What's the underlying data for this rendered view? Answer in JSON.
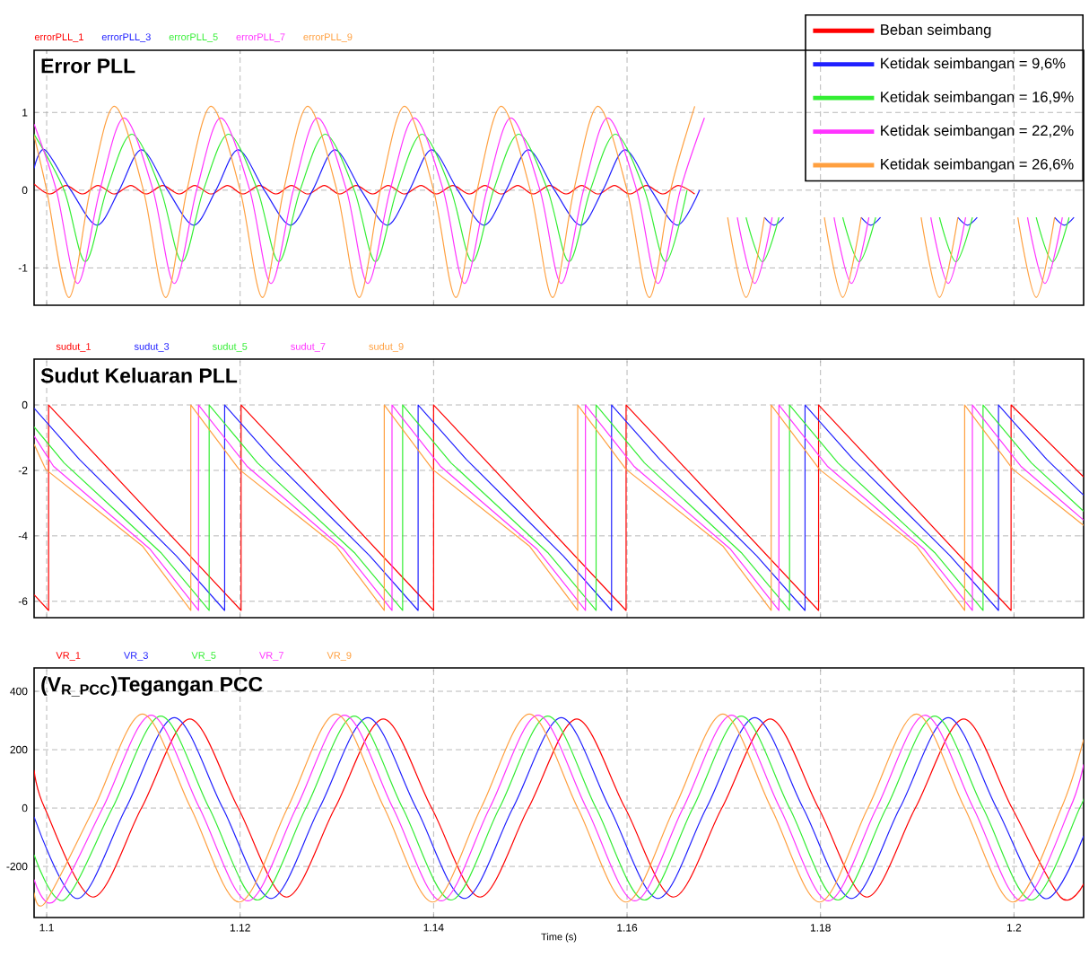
{
  "chart_data": [
    {
      "type": "line",
      "title": "Error PLL",
      "legend": "top right",
      "grid": true,
      "tick_labels": "y",
      "xlim": [
        1.0987,
        1.2072
      ],
      "xticks": [
        1.1,
        1.12,
        1.14,
        1.16,
        1.18,
        1.2
      ],
      "ylim": [
        -1.48,
        1.8
      ],
      "yticks": [
        -1,
        0,
        1
      ],
      "annotations": [
        "errorPLL_1",
        "errorPLL_3",
        "errorPLL_5",
        "errorPLL_7",
        "errorPLL_9"
      ],
      "series": [
        {
          "name": "Beban seimbang",
          "color": "#ff0000",
          "x": [
            1.0987,
            1.1003,
            1.102,
            1.1037,
            1.1053,
            1.107,
            1.1087,
            1.1103,
            1.112,
            1.1137,
            1.1153,
            1.117,
            1.1187,
            1.1203,
            1.122,
            1.1237,
            1.1253,
            1.127,
            1.1287,
            1.1303,
            1.132,
            1.1337,
            1.1353,
            1.137,
            1.1387,
            1.1403,
            1.142,
            1.1437,
            1.1453,
            1.147,
            1.1487,
            1.1503,
            1.152,
            1.1537,
            1.1553,
            1.157,
            1.1587,
            1.1603,
            1.162,
            1.1637,
            1.1653,
            1.167
          ],
          "values": [
            0.08,
            -0.05,
            0.06,
            -0.05,
            0.06,
            -0.05,
            0.06,
            -0.05,
            0.06,
            -0.05,
            0.06,
            -0.05,
            0.06,
            -0.05,
            0.06,
            -0.05,
            0.06,
            -0.05,
            0.06,
            -0.05,
            0.06,
            -0.05,
            0.06,
            -0.05,
            0.06,
            -0.05,
            0.06,
            -0.05,
            0.06,
            -0.05,
            0.06,
            -0.05,
            0.06,
            -0.05,
            0.06,
            -0.05,
            0.06,
            -0.05,
            0.06,
            -0.05,
            0.06,
            -0.05
          ]
        },
        {
          "name": "Ketidak seimbangan = 9,6%",
          "color": "#2020ff",
          "x": [
            1.0987,
            1.0998,
            1.1025,
            1.1052,
            1.1075,
            1.1098,
            1.1125,
            1.1152,
            1.1175,
            1.1198,
            1.1225,
            1.1252,
            1.1275,
            1.1298,
            1.1325,
            1.1352,
            1.1375,
            1.1398,
            1.1425,
            1.1452,
            1.1475,
            1.1498,
            1.1525,
            1.1552,
            1.1575,
            1.1598,
            1.1625,
            1.1652,
            1.1675,
            1.17,
            1.1742,
            1.1752,
            1.1762,
            1.18,
            1.1842,
            1.1852,
            1.1862,
            1.19,
            1.1942,
            1.1952,
            1.1962,
            1.2,
            1.2042,
            1.2052,
            1.2062
          ],
          "values": [
            0.28,
            0.52,
            0,
            -0.45,
            0,
            0.52,
            0,
            -0.45,
            0,
            0.52,
            0,
            -0.45,
            0,
            0.52,
            0,
            -0.45,
            0,
            0.52,
            0,
            -0.45,
            0,
            0.52,
            0,
            -0.45,
            0,
            0.52,
            0,
            -0.45,
            0,
            null,
            -0.35,
            -0.45,
            -0.35,
            null,
            -0.35,
            -0.45,
            -0.35,
            null,
            -0.35,
            -0.45,
            -0.35,
            null,
            -0.35,
            -0.45,
            -0.35
          ]
        },
        {
          "name": "Ketidak seimbangan = 16,9%",
          "color": "#33ee33",
          "x": [
            1.0987,
            1.1018,
            1.104,
            1.1062,
            1.1088,
            1.1118,
            1.114,
            1.1162,
            1.1188,
            1.1218,
            1.124,
            1.1262,
            1.1288,
            1.1318,
            1.134,
            1.1362,
            1.1388,
            1.1418,
            1.144,
            1.1462,
            1.1488,
            1.1518,
            1.154,
            1.1562,
            1.1588,
            1.1618,
            1.164,
            1.1662,
            1.169,
            1.1723,
            1.174,
            1.1757,
            1.179,
            1.1823,
            1.184,
            1.1857,
            1.189,
            1.1923,
            1.194,
            1.1957,
            1.199,
            1.2023,
            1.204,
            1.2057
          ],
          "values": [
            0.72,
            0,
            -0.92,
            0,
            0.72,
            0,
            -0.92,
            0,
            0.72,
            0,
            -0.92,
            0,
            0.72,
            0,
            -0.92,
            0,
            0.72,
            0,
            -0.92,
            0,
            0.72,
            0,
            -0.92,
            0,
            0.72,
            0,
            -0.92,
            0,
            null,
            -0.35,
            -0.92,
            -0.35,
            null,
            -0.35,
            -0.92,
            -0.35,
            null,
            -0.35,
            -0.92,
            -0.35,
            null,
            -0.35,
            -0.92,
            -0.35
          ]
        },
        {
          "name": "Ketidak seimbangan = 22,2%",
          "color": "#ff33ff",
          "x": [
            1.0987,
            1.101,
            1.1032,
            1.1055,
            1.108,
            1.111,
            1.1132,
            1.1155,
            1.118,
            1.121,
            1.1232,
            1.1255,
            1.128,
            1.131,
            1.1332,
            1.1355,
            1.138,
            1.141,
            1.1432,
            1.1455,
            1.148,
            1.151,
            1.1532,
            1.1555,
            1.158,
            1.161,
            1.1632,
            1.1655,
            1.168,
            1.1695,
            1.1714,
            1.1732,
            1.175,
            1.177,
            1.1814,
            1.1832,
            1.185,
            1.187,
            1.1914,
            1.1932,
            1.195,
            1.197,
            1.2014,
            1.2032,
            1.205
          ],
          "values": [
            0.85,
            0,
            -1.2,
            0,
            0.93,
            0,
            -1.2,
            0,
            0.93,
            0,
            -1.2,
            0,
            0.93,
            0,
            -1.2,
            0,
            0.93,
            0,
            -1.2,
            0,
            0.93,
            0,
            -1.2,
            0,
            0.93,
            0,
            -1.2,
            0,
            0.93,
            null,
            -0.35,
            -1.2,
            -0.35,
            null,
            -0.35,
            -1.2,
            -0.35,
            null,
            -0.35,
            -1.2,
            -0.35,
            null,
            -0.35,
            -1.2,
            -0.35
          ]
        },
        {
          "name": "Ketidak seimbangan = 26,6%",
          "color": "#ffa040",
          "x": [
            1.0987,
            1.1,
            1.1023,
            1.1045,
            1.107,
            1.11,
            1.1123,
            1.1145,
            1.117,
            1.12,
            1.1223,
            1.1245,
            1.127,
            1.13,
            1.1323,
            1.1345,
            1.137,
            1.14,
            1.1423,
            1.1445,
            1.147,
            1.15,
            1.1523,
            1.1545,
            1.157,
            1.16,
            1.1623,
            1.1645,
            1.167,
            1.169,
            1.1704,
            1.1723,
            1.1742,
            1.176,
            1.1804,
            1.1823,
            1.1842,
            1.186,
            1.1904,
            1.1923,
            1.1942,
            1.196,
            1.2004,
            1.2023,
            1.2042
          ],
          "values": [
            0.7,
            0,
            -1.38,
            0,
            1.08,
            0,
            -1.38,
            0,
            1.08,
            0,
            -1.38,
            0,
            1.08,
            0,
            -1.38,
            0,
            1.08,
            0,
            -1.38,
            0,
            1.08,
            0,
            -1.38,
            0,
            1.08,
            0,
            -1.38,
            0,
            1.08,
            null,
            -0.35,
            -1.38,
            -0.35,
            null,
            -0.35,
            -1.38,
            -0.35,
            null,
            -0.35,
            -1.38,
            -0.35,
            null,
            -0.35,
            -1.38,
            -0.35
          ]
        }
      ]
    },
    {
      "type": "line",
      "title": "Sudut Keluaran PLL",
      "legend": "top left",
      "grid": true,
      "tick_labels": "y",
      "xlim": [
        1.0987,
        1.2072
      ],
      "xticks": [
        1.1,
        1.12,
        1.14,
        1.16,
        1.18,
        1.2
      ],
      "ylim": [
        -6.5,
        1.4
      ],
      "yticks": [
        -6,
        -4,
        -2,
        0
      ],
      "series": [
        {
          "name": "sudut_1",
          "color": "#ff0000",
          "x": [
            1.0987,
            1.1002,
            1.1002,
            1.1201,
            1.1201,
            1.14,
            1.14,
            1.1599,
            1.1599,
            1.1798,
            1.1798,
            1.1997,
            1.1997,
            1.2072
          ],
          "values": [
            -5.8,
            -6.28,
            0,
            -6.28,
            0,
            -6.28,
            0,
            -6.28,
            0,
            -6.28,
            0,
            -6.28,
            0,
            -2.2
          ]
        },
        {
          "name": "sudut_3",
          "color": "#2020ff",
          "x": [
            1.0987,
            1.1034,
            1.1084,
            1.1134,
            1.1184,
            1.1184,
            1.1234,
            1.1284,
            1.1334,
            1.1384,
            1.1384,
            1.1434,
            1.1484,
            1.1534,
            1.1584,
            1.1584,
            1.1634,
            1.1684,
            1.1734,
            1.1784,
            1.1784,
            1.1834,
            1.1884,
            1.1934,
            1.1984,
            1.1984,
            1.2034,
            1.2072
          ],
          "values": [
            -0.1,
            -1.67,
            -3.14,
            -4.61,
            -6.28,
            0,
            -1.67,
            -3.14,
            -4.61,
            -6.28,
            0,
            -1.67,
            -3.14,
            -4.61,
            -6.28,
            0,
            -1.67,
            -3.14,
            -4.61,
            -6.28,
            0,
            -1.67,
            -3.14,
            -4.61,
            -6.28,
            0,
            -1.67,
            -2.76
          ]
        },
        {
          "name": "sudut_5",
          "color": "#33ee33",
          "x": [
            1.0987,
            1.1018,
            1.1068,
            1.1118,
            1.1168,
            1.1168,
            1.1218,
            1.1268,
            1.1318,
            1.1368,
            1.1368,
            1.1418,
            1.1468,
            1.1518,
            1.1568,
            1.1568,
            1.1618,
            1.1668,
            1.1718,
            1.1768,
            1.1768,
            1.1818,
            1.1868,
            1.1918,
            1.1968,
            1.1968,
            1.2018,
            1.2068,
            1.2072
          ],
          "values": [
            -0.67,
            -1.77,
            -3.14,
            -4.51,
            -6.28,
            0,
            -1.77,
            -3.14,
            -4.51,
            -6.28,
            0,
            -1.77,
            -3.14,
            -4.51,
            -6.28,
            0,
            -1.77,
            -3.14,
            -4.51,
            -6.28,
            0,
            -1.77,
            -3.14,
            -4.51,
            -6.28,
            0,
            -1.77,
            -3.14,
            -3.25
          ]
        },
        {
          "name": "sudut_7",
          "color": "#ff33ff",
          "x": [
            1.0987,
            1.1007,
            1.1057,
            1.1107,
            1.1157,
            1.1157,
            1.1207,
            1.1257,
            1.1307,
            1.1357,
            1.1357,
            1.1407,
            1.1457,
            1.1507,
            1.1557,
            1.1557,
            1.1607,
            1.1657,
            1.1707,
            1.1757,
            1.1757,
            1.1807,
            1.1857,
            1.1907,
            1.1957,
            1.1957,
            1.2007,
            1.2057,
            1.2072
          ],
          "values": [
            -0.95,
            -1.87,
            -3.14,
            -4.41,
            -6.28,
            0,
            -1.87,
            -3.14,
            -4.41,
            -6.28,
            0,
            -1.87,
            -3.14,
            -4.41,
            -6.28,
            0,
            -1.87,
            -3.14,
            -4.41,
            -6.28,
            0,
            -1.87,
            -3.14,
            -4.41,
            -6.28,
            0,
            -1.87,
            -3.14,
            -3.52
          ]
        },
        {
          "name": "sudut_9",
          "color": "#ffa040",
          "x": [
            1.0987,
            1.0999,
            1.1049,
            1.1099,
            1.1149,
            1.1149,
            1.1199,
            1.1249,
            1.1299,
            1.1349,
            1.1349,
            1.1399,
            1.1449,
            1.1499,
            1.1549,
            1.1549,
            1.1599,
            1.1649,
            1.1699,
            1.1749,
            1.1749,
            1.1799,
            1.1849,
            1.1899,
            1.1949,
            1.1949,
            1.1999,
            1.2049,
            1.2072
          ],
          "values": [
            -1.2,
            -1.97,
            -3.14,
            -4.31,
            -6.28,
            0,
            -1.97,
            -3.14,
            -4.31,
            -6.28,
            0,
            -1.97,
            -3.14,
            -4.31,
            -6.28,
            0,
            -1.97,
            -3.14,
            -4.31,
            -6.28,
            0,
            -1.97,
            -3.14,
            -4.31,
            -6.28,
            0,
            -1.97,
            -3.14,
            -3.68
          ]
        }
      ]
    },
    {
      "type": "line",
      "title": "(V$_{R_PCC}$)Tegangan PCC",
      "xlabel": "Time (s)",
      "legend": "top left",
      "grid": true,
      "xlim": [
        1.0987,
        1.2072
      ],
      "xticks": [
        1.1,
        1.12,
        1.14,
        1.16,
        1.18,
        1.2
      ],
      "ylim": [
        -375,
        480
      ],
      "yticks": [
        -200,
        0,
        200,
        400
      ],
      "series": [
        {
          "name": "VR_1",
          "color": "#ff0000",
          "x": [
            1.0987,
            1.0998,
            1.1048,
            1.1098,
            1.1148,
            1.1198,
            1.1248,
            1.1298,
            1.1348,
            1.1398,
            1.1448,
            1.1498,
            1.1548,
            1.1598,
            1.1648,
            1.1698,
            1.1748,
            1.1798,
            1.1848,
            1.1898,
            1.1948,
            1.1998,
            1.2048,
            1.2072
          ],
          "values": [
            130,
            0,
            -305,
            0,
            305,
            0,
            -305,
            0,
            305,
            0,
            -305,
            0,
            305,
            0,
            -305,
            0,
            305,
            0,
            -305,
            0,
            305,
            0,
            -305,
            -260
          ]
        },
        {
          "name": "VR_3",
          "color": "#2020ff",
          "x": [
            1.0987,
            1.1032,
            1.1082,
            1.1132,
            1.1182,
            1.1232,
            1.1282,
            1.1332,
            1.1382,
            1.1432,
            1.1482,
            1.1532,
            1.1582,
            1.1632,
            1.1682,
            1.1732,
            1.1782,
            1.1832,
            1.1882,
            1.1932,
            1.1982,
            1.2032,
            1.2072
          ],
          "values": [
            -30,
            -310,
            0,
            310,
            0,
            -310,
            0,
            310,
            0,
            -310,
            0,
            310,
            0,
            -310,
            0,
            310,
            0,
            -310,
            0,
            310,
            0,
            -310,
            -96
          ]
        },
        {
          "name": "VR_5",
          "color": "#33ee33",
          "x": [
            1.0987,
            1.1018,
            1.1068,
            1.1118,
            1.1168,
            1.1218,
            1.1268,
            1.1318,
            1.1368,
            1.1418,
            1.1468,
            1.1518,
            1.1568,
            1.1618,
            1.1668,
            1.1718,
            1.1768,
            1.1818,
            1.1868,
            1.1918,
            1.1968,
            1.2018,
            1.2068,
            1.2072
          ],
          "values": [
            -160,
            -315,
            0,
            315,
            0,
            -315,
            0,
            315,
            0,
            -315,
            0,
            315,
            0,
            -315,
            0,
            315,
            0,
            -315,
            0,
            315,
            0,
            -315,
            0,
            45
          ]
        },
        {
          "name": "VR_7",
          "color": "#ff33ff",
          "x": [
            1.0987,
            1.1008,
            1.1058,
            1.1108,
            1.1158,
            1.1208,
            1.1258,
            1.1308,
            1.1358,
            1.1408,
            1.1458,
            1.1508,
            1.1558,
            1.1608,
            1.1658,
            1.1708,
            1.1758,
            1.1808,
            1.1858,
            1.1908,
            1.1958,
            1.2008,
            1.2058,
            1.2072
          ],
          "values": [
            -245,
            -318,
            0,
            318,
            0,
            -318,
            0,
            318,
            0,
            -318,
            0,
            318,
            0,
            -318,
            0,
            318,
            0,
            -318,
            0,
            318,
            0,
            -318,
            0,
            150
          ]
        },
        {
          "name": "VR_9",
          "color": "#ffa040",
          "x": [
            1.0987,
            1.0999,
            1.1049,
            1.1099,
            1.1149,
            1.1199,
            1.1249,
            1.1299,
            1.1349,
            1.1399,
            1.1449,
            1.1499,
            1.1549,
            1.1599,
            1.1649,
            1.1699,
            1.1749,
            1.1799,
            1.1849,
            1.1899,
            1.1949,
            1.1999,
            1.2049,
            1.2072
          ],
          "values": [
            -290,
            -322,
            0,
            322,
            0,
            -322,
            0,
            322,
            0,
            -322,
            0,
            322,
            0,
            -322,
            0,
            322,
            0,
            -322,
            0,
            322,
            0,
            -322,
            0,
            235
          ]
        }
      ]
    }
  ]
}
